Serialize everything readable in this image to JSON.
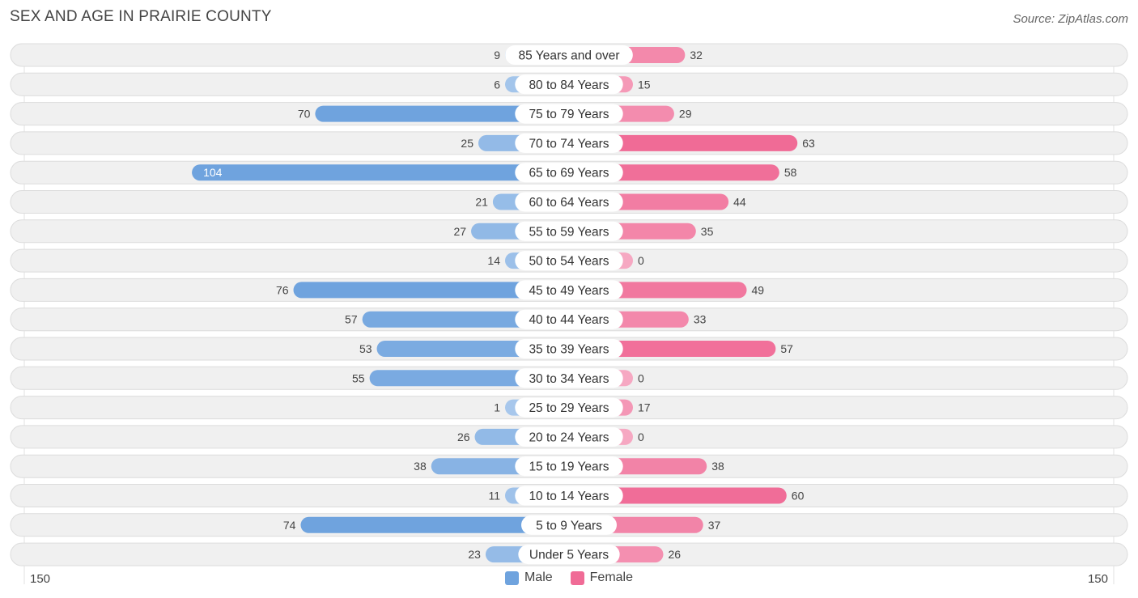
{
  "header": {
    "title": "SEX AND AGE IN PRAIRIE COUNTY",
    "source": "Source: ZipAtlas.com"
  },
  "colors": {
    "male_dark": "#6fa3de",
    "male_light": "#a8c8ec",
    "female_dark": "#f06b96",
    "female_light": "#f6a8c2",
    "row_bg": "#f0f0f0",
    "row_border": "#dcdcdc"
  },
  "chart_data": {
    "type": "bar",
    "orientation": "horizontal-diverging",
    "title": "SEX AND AGE IN PRAIRIE COUNTY",
    "categories": [
      "85 Years and over",
      "80 to 84 Years",
      "75 to 79 Years",
      "70 to 74 Years",
      "65 to 69 Years",
      "60 to 64 Years",
      "55 to 59 Years",
      "50 to 54 Years",
      "45 to 49 Years",
      "40 to 44 Years",
      "35 to 39 Years",
      "30 to 34 Years",
      "25 to 29 Years",
      "20 to 24 Years",
      "15 to 19 Years",
      "10 to 14 Years",
      "5 to 9 Years",
      "Under 5 Years"
    ],
    "series": [
      {
        "name": "Male",
        "values": [
          9,
          6,
          70,
          25,
          104,
          21,
          27,
          14,
          76,
          57,
          53,
          55,
          1,
          26,
          38,
          11,
          74,
          23
        ]
      },
      {
        "name": "Female",
        "values": [
          32,
          15,
          29,
          63,
          58,
          44,
          35,
          0,
          49,
          33,
          57,
          0,
          17,
          0,
          38,
          60,
          37,
          26
        ]
      }
    ],
    "xlim": [
      -150,
      150
    ],
    "axis_left_label": "150",
    "axis_right_label": "150",
    "legend_position": "bottom-center"
  }
}
